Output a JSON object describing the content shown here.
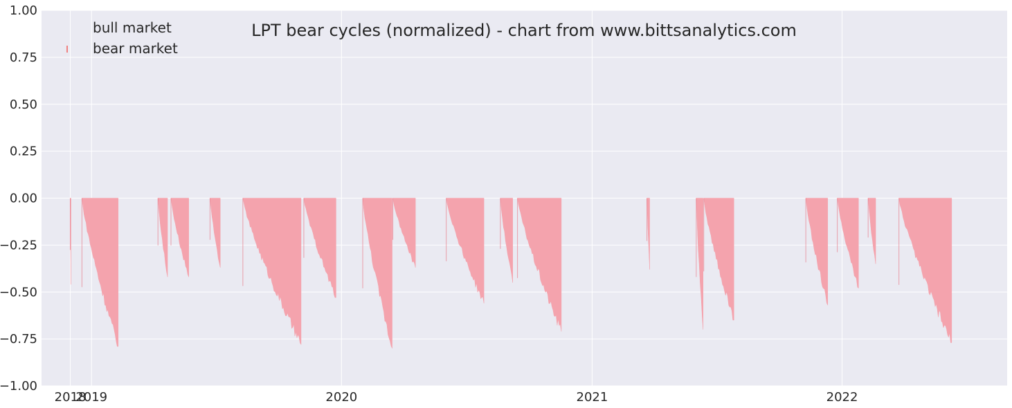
{
  "chart_data": {
    "type": "bar",
    "title": "LPT bear cycles (normalized)  - chart from www.bittsanalytics.com",
    "xlabel": "",
    "ylabel": "",
    "ylim": [
      -1.0,
      1.0
    ],
    "xlim": [
      "2018-10-20",
      "2022-08-30"
    ],
    "y_ticks": [
      "1.00",
      "0.75",
      "0.50",
      "0.25",
      "0.00",
      "−0.25",
      "−0.50",
      "−0.75",
      "−1.00"
    ],
    "y_tick_values": [
      1.0,
      0.75,
      0.5,
      0.25,
      0.0,
      -0.25,
      -0.5,
      -0.75,
      -1.0
    ],
    "x_ticks": [
      {
        "date": "2018-12-01",
        "label": "2018"
      },
      {
        "date": "2019-01-01",
        "label": "2019"
      },
      {
        "date": "2020-01-01",
        "label": "2020"
      },
      {
        "date": "2021-01-01",
        "label": "2021"
      },
      {
        "date": "2022-01-01",
        "label": "2022"
      }
    ],
    "grid": true,
    "legend": {
      "placement": "top-left",
      "entries": [
        {
          "label": "bull market",
          "color": "#2ca02c"
        },
        {
          "label": "bear market",
          "color": "#f08080"
        }
      ]
    },
    "colors": {
      "background": "#eaeaf2",
      "grid": "#ffffff",
      "bear_fill": "#f4a3ad",
      "bear_line": "#e86a7a"
    },
    "series": [
      {
        "name": "bear market",
        "cycles": [
          {
            "start": "2018-12-01",
            "end": "2018-12-02",
            "trough": -0.46
          },
          {
            "start": "2018-12-18",
            "end": "2019-02-09",
            "trough": -0.79
          },
          {
            "start": "2019-04-08",
            "end": "2019-04-22",
            "trough": -0.42
          },
          {
            "start": "2019-04-27",
            "end": "2019-05-23",
            "trough": -0.42
          },
          {
            "start": "2019-06-23",
            "end": "2019-07-08",
            "trough": -0.37
          },
          {
            "start": "2019-08-10",
            "end": "2019-11-03",
            "trough": -0.78
          },
          {
            "start": "2019-11-07",
            "end": "2019-12-24",
            "trough": -0.53
          },
          {
            "start": "2020-02-01",
            "end": "2020-03-15",
            "trough": -0.8
          },
          {
            "start": "2020-03-16",
            "end": "2020-04-18",
            "trough": -0.37
          },
          {
            "start": "2020-06-02",
            "end": "2020-07-27",
            "trough": -0.56
          },
          {
            "start": "2020-08-20",
            "end": "2020-09-07",
            "trough": -0.45
          },
          {
            "start": "2020-09-14",
            "end": "2020-11-17",
            "trough": -0.71
          },
          {
            "start": "2021-03-22",
            "end": "2021-03-26",
            "trough": -0.38
          },
          {
            "start": "2021-06-02",
            "end": "2021-06-12",
            "trough": -0.7
          },
          {
            "start": "2021-06-13",
            "end": "2021-07-27",
            "trough": -0.65
          },
          {
            "start": "2021-11-09",
            "end": "2021-12-11",
            "trough": -0.57
          },
          {
            "start": "2021-12-25",
            "end": "2022-01-25",
            "trough": -0.48
          },
          {
            "start": "2022-02-08",
            "end": "2022-02-19",
            "trough": -0.35
          },
          {
            "start": "2022-03-25",
            "end": "2022-06-10",
            "trough": -0.77
          }
        ]
      }
    ]
  }
}
